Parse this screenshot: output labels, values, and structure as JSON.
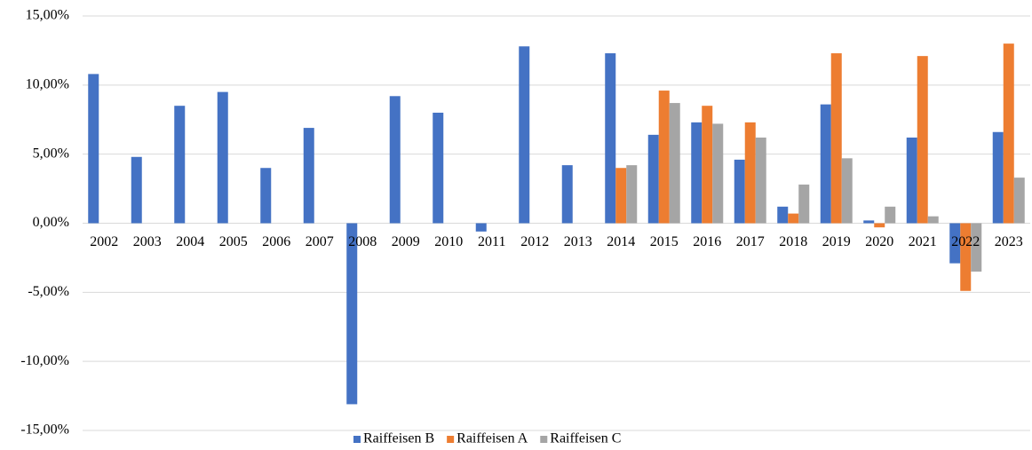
{
  "chart_data": {
    "type": "bar",
    "categories": [
      "2002",
      "2003",
      "2004",
      "2005",
      "2006",
      "2007",
      "2008",
      "2009",
      "2010",
      "2011",
      "2012",
      "2013",
      "2014",
      "2015",
      "2016",
      "2017",
      "2018",
      "2019",
      "2020",
      "2021",
      "2022",
      "2023"
    ],
    "series": [
      {
        "name": "Raiffeisen B",
        "color": "#4472c4",
        "values": [
          10.8,
          4.8,
          8.5,
          9.5,
          4.0,
          6.9,
          -13.1,
          9.2,
          8.0,
          -0.6,
          12.8,
          4.2,
          12.3,
          6.4,
          7.3,
          4.6,
          1.2,
          8.6,
          0.2,
          6.2,
          -2.9,
          6.6
        ]
      },
      {
        "name": "Raiffeisen A",
        "color": "#ed7d31",
        "values": [
          null,
          null,
          null,
          null,
          null,
          null,
          null,
          null,
          null,
          null,
          null,
          null,
          4.0,
          9.6,
          8.5,
          7.3,
          0.7,
          12.3,
          -0.3,
          12.1,
          -4.9,
          13.0
        ]
      },
      {
        "name": "Raiffeisen C",
        "color": "#a5a5a5",
        "values": [
          null,
          null,
          null,
          null,
          null,
          null,
          null,
          null,
          null,
          null,
          null,
          null,
          4.2,
          8.7,
          7.2,
          6.2,
          2.8,
          4.7,
          1.2,
          0.5,
          -3.5,
          3.3
        ]
      }
    ],
    "ylim": [
      -15,
      15
    ],
    "yticks": [
      {
        "value": -15,
        "label": "-15,00%"
      },
      {
        "value": -10,
        "label": "-10,00%"
      },
      {
        "value": -5,
        "label": "-5,00%"
      },
      {
        "value": 0,
        "label": "0,00%"
      },
      {
        "value": 5,
        "label": "5,00%"
      },
      {
        "value": 10,
        "label": "10,00%"
      },
      {
        "value": 15,
        "label": "15,00%"
      }
    ],
    "grid": true,
    "legend": "bottom"
  }
}
